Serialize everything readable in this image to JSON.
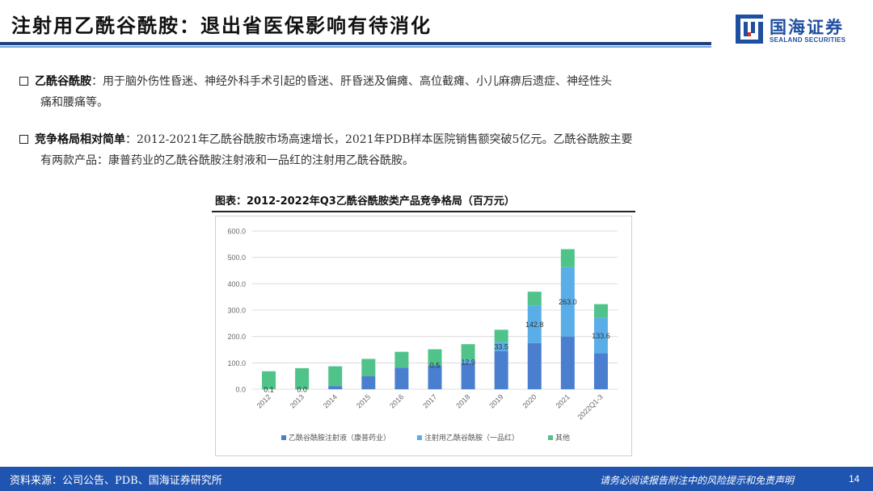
{
  "header": {
    "title": "注射用乙酰谷酰胺：退出省医保影响有待消化",
    "logo_cn": "国海证券",
    "logo_en": "SEALAND SECURITIES"
  },
  "bullets": [
    {
      "label": "乙酰谷酰胺",
      "sep": "：",
      "text_line1": "用于脑外伤性昏迷、神经外科手术引起的昏迷、肝昏迷及偏瘫、高位截瘫、小儿麻痹后遗症、神经性头",
      "text_line2": "痛和腰痛等。"
    },
    {
      "label": "竞争格局相对简单",
      "sep": "：",
      "text_line1": "2012-2021年乙酰谷酰胺市场高速增长，2021年PDB样本医院销售额突破5亿元。乙酰谷酰胺主要",
      "text_line2": "有两款产品：康普药业的乙酰谷酰胺注射液和一品红的注射用乙酰谷酰胺。"
    }
  ],
  "chart_title": "图表：2012-2022年Q3乙酰谷酰胺类产品竞争格局（百万元）",
  "footer": {
    "source": "资料来源：公司公告、PDB、国海证券研究所",
    "note": "请务必阅读报告附注中的风险提示和免责声明",
    "page": "14"
  },
  "colors": {
    "series1": "#4a7fd0",
    "series2": "#5aaee8",
    "series3": "#4fc38a",
    "grid": "#dcdcdc",
    "brand": "#1f55b0"
  },
  "chart_data": {
    "type": "bar",
    "stacked": true,
    "categories": [
      "2012",
      "2013",
      "2014",
      "2015",
      "2016",
      "2017",
      "2018",
      "2019",
      "2020",
      "2021",
      "2022Q1-3"
    ],
    "series": [
      {
        "name": "乙酰谷酰胺注射液（康普药业）",
        "values": [
          0,
          0,
          12,
          50,
          82,
          91,
          98,
          145,
          175,
          200,
          137
        ]
      },
      {
        "name": "注射用乙酰谷酰胺（一品红）",
        "values": [
          0.1,
          0.0,
          0,
          0,
          0,
          0.5,
          12.9,
          33.5,
          142.8,
          263.0,
          133.6
        ]
      },
      {
        "name": "其他",
        "values": [
          68,
          80,
          75,
          65,
          60,
          60,
          60,
          47,
          52,
          68,
          52
        ]
      }
    ],
    "data_labels": [
      {
        "category": "2012",
        "series": 1,
        "text": "0.1"
      },
      {
        "category": "2013",
        "series": 1,
        "text": "0.0"
      },
      {
        "category": "2017",
        "series": 1,
        "text": "0.5"
      },
      {
        "category": "2018",
        "series": 1,
        "text": "12.9"
      },
      {
        "category": "2019",
        "series": 1,
        "text": "33.5"
      },
      {
        "category": "2020",
        "series": 1,
        "text": "142.8"
      },
      {
        "category": "2021",
        "series": 1,
        "text": "263.0"
      },
      {
        "category": "2022Q1-3",
        "series": 1,
        "text": "133.6"
      }
    ],
    "yticks": [
      "0.0",
      "100.0",
      "200.0",
      "300.0",
      "400.0",
      "500.0",
      "600.0"
    ],
    "ylim": [
      0,
      600
    ],
    "grid": true,
    "legend_position": "bottom"
  }
}
